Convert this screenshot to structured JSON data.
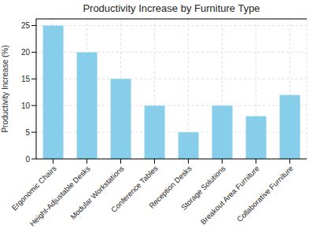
{
  "chart_data": {
    "type": "bar",
    "title": "Productivity Increase by Furniture Type",
    "y_label": "Productivity Increase (%)",
    "categories": [
      "Ergonomic Chairs",
      "Height-Adjustable Desks",
      "Modular Workstations",
      "Conference Tables",
      "Reception Desks",
      "Storage Solutions",
      "Breakout Area Furniture",
      "Collaborative Furniture"
    ],
    "values": [
      25,
      20,
      15,
      10,
      5,
      10,
      8,
      12
    ],
    "color": "#87ceeb",
    "ylim": [
      0,
      26.25
    ],
    "yticks": [
      0,
      5,
      10,
      15,
      20,
      25
    ],
    "grid": true
  }
}
